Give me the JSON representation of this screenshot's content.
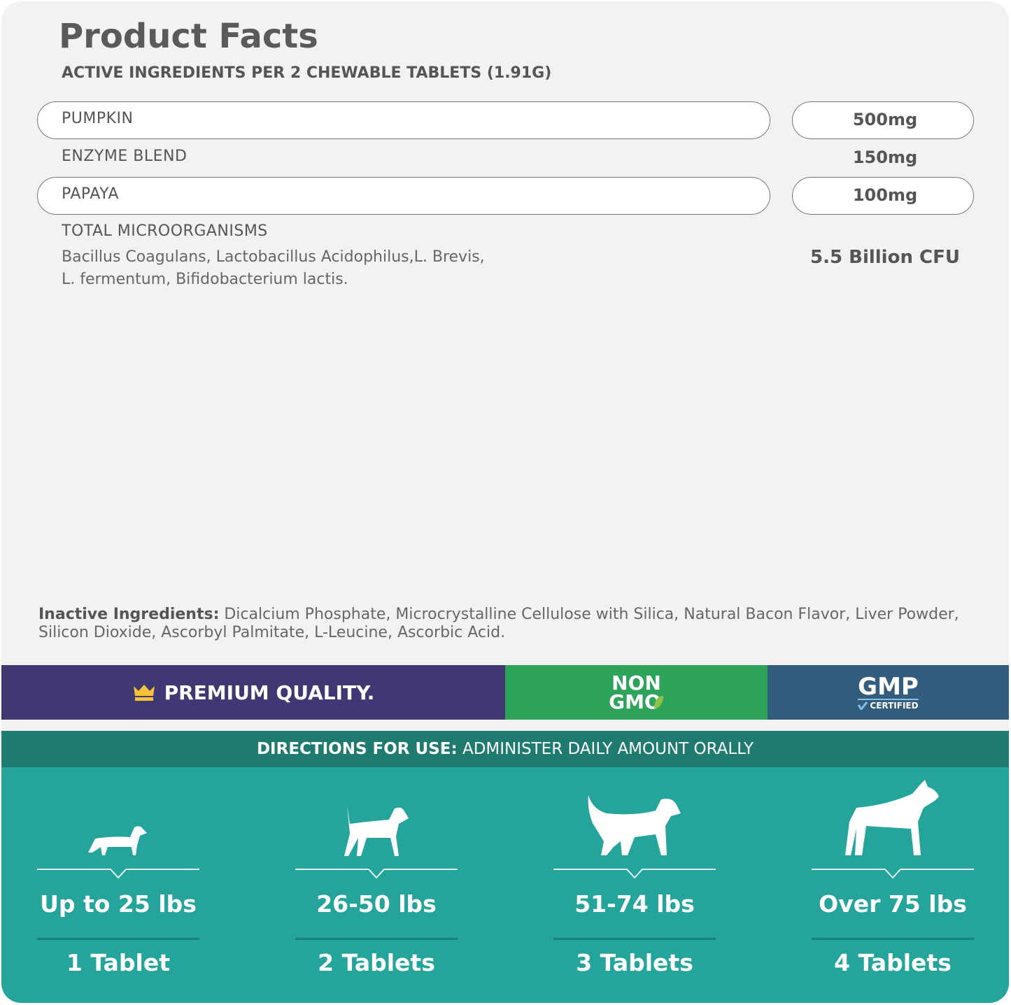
{
  "title": "Product Facts",
  "subtitle": "ACTIVE INGREDIENTS PER 2 CHEWABLE TABLETS (1.91G)",
  "ingredients": [
    {
      "name": "PUMPKIN",
      "amount": "500mg"
    },
    {
      "name": "ENZYME BLEND",
      "amount": "150mg"
    },
    {
      "name": "PAPAYA",
      "amount": "100mg"
    },
    {
      "name": "TOTAL MICROORGANISMS",
      "amount": "5.5 Billion CFU",
      "detail_line1": "Bacillus Coagulans, Lactobacillus Acidophilus,L. Brevis,",
      "detail_line2": "L. fermentum, Bifidobacterium lactis."
    }
  ],
  "inactive": {
    "label": "Inactive Ingredients:",
    "text": " Dicalcium Phosphate, Microcrystalline Cellulose with Silica, Natural Bacon Flavor, Liver Powder, Silicon Dioxide, Ascorbyl Palmitate, L-Leucine, Ascorbic Acid."
  },
  "badges": {
    "premium": "PREMIUM QUALITY.",
    "non": "NON",
    "gmo": "GMO",
    "gmp": "GMP",
    "certified": "CERTIFIED",
    "icons": [
      "crown-icon",
      "leaf-icon",
      "check-icon"
    ]
  },
  "colors": {
    "purple": "#3f3872",
    "green": "#2ea35a",
    "blue": "#335c7d",
    "teal_dark": "#1f7a70",
    "teal": "#24a49a",
    "background": "#f2f2f2"
  },
  "directions": {
    "label": "DIRECTIONS FOR USE:",
    "text": " ADMINISTER DAILY AMOUNT ORALLY"
  },
  "dosage": [
    {
      "weight": "Up to 25 lbs",
      "amount": "1 Tablet",
      "icon": "small-dog-icon"
    },
    {
      "weight": "26-50 lbs",
      "amount": "2 Tablets",
      "icon": "medium-dog-icon"
    },
    {
      "weight": "51-74 lbs",
      "amount": "3 Tablets",
      "icon": "large-dog-icon"
    },
    {
      "weight": "Over 75 lbs",
      "amount": "4 Tablets",
      "icon": "extra-large-dog-icon"
    }
  ]
}
